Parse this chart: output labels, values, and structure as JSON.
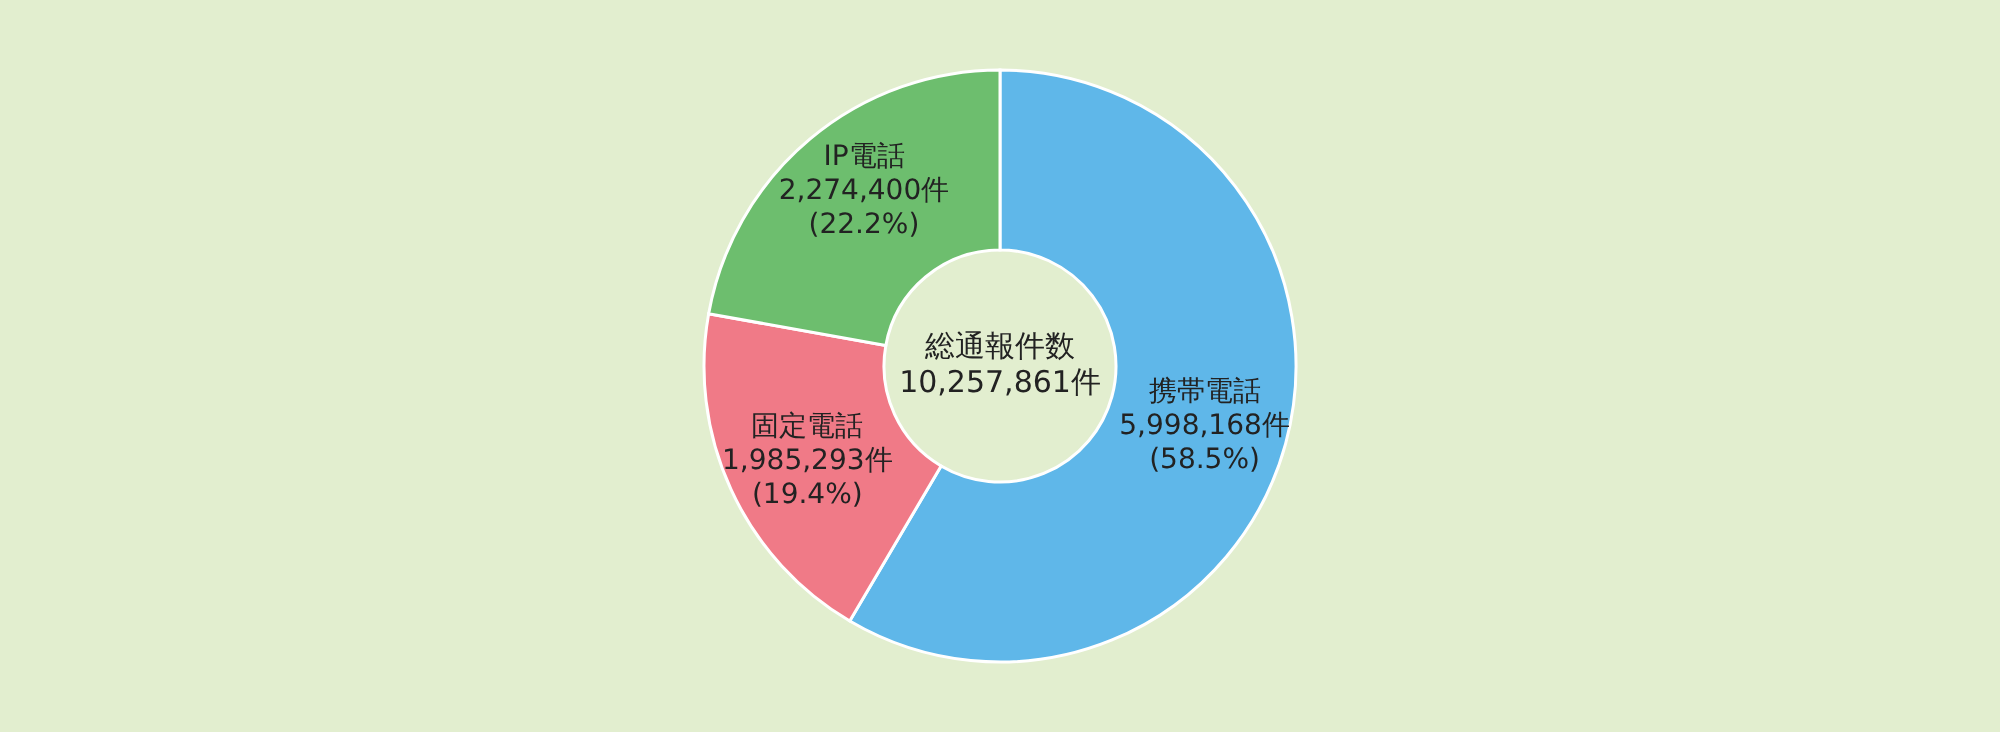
{
  "chart_data": {
    "type": "donut",
    "categories": [
      "携帯電話",
      "固定電話",
      "IP電話"
    ],
    "values": [
      5998168,
      1985293,
      2274400
    ],
    "colors": [
      "#5fb7e9",
      "#f07a87",
      "#6dbe6e"
    ],
    "value_labels": [
      "5,998,168件\n(58.5%)",
      "1,985,293件\n(19.4%)",
      "2,274,400件\n(22.2%)"
    ],
    "annotations": [
      "総通報件数",
      "10,257,861件"
    ],
    "legend": false
  }
}
